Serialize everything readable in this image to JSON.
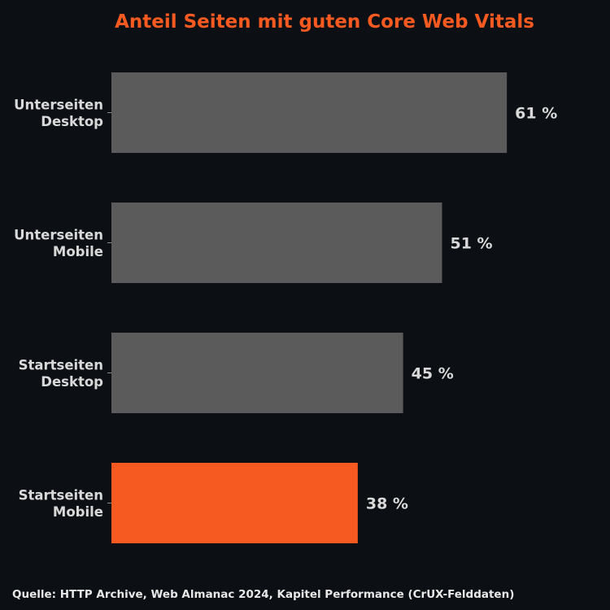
{
  "chart_data": {
    "type": "bar",
    "orientation": "horizontal",
    "title": "Anteil Seiten mit guten Core Web Vitals",
    "categories": [
      [
        "Unterseiten",
        "Desktop"
      ],
      [
        "Unterseiten",
        "Mobile"
      ],
      [
        "Startseiten",
        "Desktop"
      ],
      [
        "Startseiten",
        "Mobile"
      ]
    ],
    "values": [
      61,
      51,
      45,
      38
    ],
    "value_labels": [
      "61 %",
      "51 %",
      "45 %",
      "38 %"
    ],
    "highlight_index": 3,
    "xlabel": "",
    "ylabel": "",
    "xlim": [
      0,
      100
    ],
    "grid": false,
    "legend": "none"
  },
  "source": "Quelle: HTTP Archive, Web Almanac 2024, Kapitel Performance (CrUX-Felddaten)",
  "colors": {
    "background": "#0c1014",
    "bar": "#5b5b5b",
    "highlight": "#f75a21",
    "title": "#f75a21",
    "text": "#d9d9d9",
    "tick": "#8c8c8c"
  }
}
